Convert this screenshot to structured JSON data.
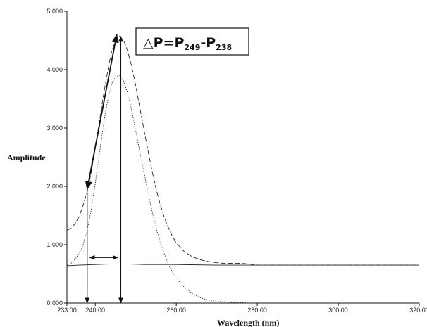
{
  "chart_data": {
    "type": "line",
    "title": "",
    "xlabel": "Wavelength (nm)",
    "ylabel": "Amplitude",
    "xlim": [
      233.0,
      320.0
    ],
    "ylim": [
      0.0,
      5.0
    ],
    "x_ticks": [
      "233.00",
      "240.00",
      "260.00",
      "280.00",
      "300.00",
      "320.00"
    ],
    "x_tick_values": [
      233.0,
      240.0,
      260.0,
      280.0,
      300.0,
      320.0
    ],
    "y_ticks": [
      "0.000",
      "1.000",
      "2.000",
      "3.000",
      "4.000",
      "5.000"
    ],
    "y_tick_values": [
      0,
      1,
      2,
      3,
      4,
      5
    ],
    "grid": false,
    "series": [
      {
        "style": "dashed",
        "x": [
          233,
          234,
          235,
          236,
          237,
          238,
          239,
          240,
          241,
          242,
          243,
          244,
          245,
          246,
          247,
          248,
          249,
          250,
          251,
          252,
          253,
          254,
          255,
          256,
          257,
          258,
          259,
          260,
          262,
          264,
          266,
          268,
          270,
          272,
          274,
          276,
          278,
          280,
          290,
          300,
          310,
          320
        ],
        "y": [
          1.25,
          1.28,
          1.36,
          1.48,
          1.68,
          1.9,
          2.25,
          2.65,
          3.1,
          3.55,
          3.95,
          4.3,
          4.5,
          4.57,
          4.5,
          4.32,
          4.05,
          3.72,
          3.35,
          2.98,
          2.62,
          2.27,
          1.96,
          1.7,
          1.48,
          1.3,
          1.15,
          1.03,
          0.88,
          0.79,
          0.74,
          0.71,
          0.69,
          0.68,
          0.68,
          0.68,
          0.67,
          0.65,
          0.65,
          0.65,
          0.65,
          0.65
        ]
      },
      {
        "style": "dotted",
        "x": [
          233,
          234,
          235,
          236,
          237,
          238,
          239,
          240,
          241,
          242,
          243,
          244,
          245,
          246,
          247,
          248,
          249,
          250,
          251,
          252,
          253,
          254,
          255,
          256,
          257,
          258,
          259,
          260,
          262,
          264,
          266,
          268,
          270,
          272,
          274,
          276,
          278,
          280
        ],
        "y": [
          0.65,
          0.68,
          0.75,
          0.85,
          1.0,
          1.25,
          1.6,
          2.05,
          2.55,
          3.05,
          3.45,
          3.75,
          3.88,
          3.9,
          3.8,
          3.6,
          3.3,
          2.95,
          2.6,
          2.25,
          1.9,
          1.58,
          1.3,
          1.05,
          0.85,
          0.68,
          0.54,
          0.43,
          0.27,
          0.16,
          0.09,
          0.05,
          0.03,
          0.02,
          0.01,
          0.01,
          0.0,
          0.0
        ]
      },
      {
        "style": "solid",
        "x": [
          233,
          236,
          240,
          244,
          248,
          252,
          256,
          260,
          270,
          280,
          290,
          300,
          310,
          320
        ],
        "y": [
          0.64,
          0.65,
          0.66,
          0.67,
          0.67,
          0.66,
          0.66,
          0.66,
          0.65,
          0.65,
          0.65,
          0.65,
          0.65,
          0.65
        ]
      }
    ],
    "annotation": {
      "main_a": "△P=P",
      "sub_a": "249",
      "main_b": "-P",
      "sub_b": "238"
    },
    "arrows": [
      {
        "kind": "double",
        "from": [
          238.0,
          1.95
        ],
        "to": [
          245.3,
          4.6
        ]
      },
      {
        "kind": "down",
        "from": [
          238.0,
          1.9
        ],
        "to": [
          238.0,
          0.0
        ]
      },
      {
        "kind": "vertical-double",
        "from": [
          246.3,
          4.57
        ],
        "to": [
          246.3,
          0.0
        ]
      },
      {
        "kind": "horizontal-double",
        "from": [
          238.6,
          0.78
        ],
        "to": [
          245.6,
          0.78
        ]
      }
    ]
  }
}
